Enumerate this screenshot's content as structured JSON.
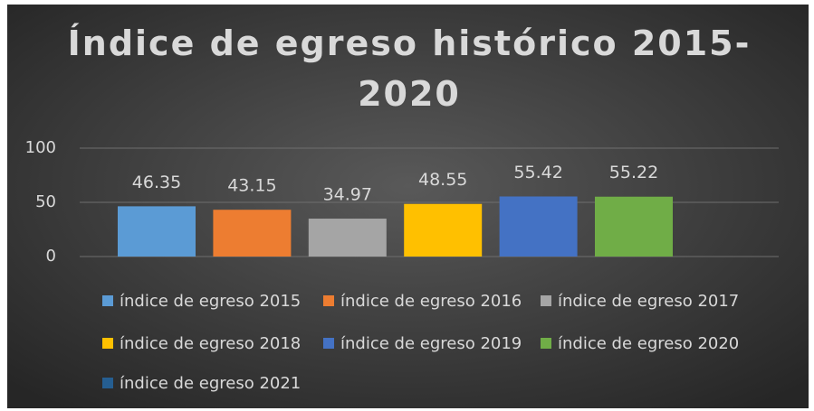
{
  "chart_data": {
    "type": "bar",
    "title": "Índice de egreso histórico 2015-2020",
    "series": [
      {
        "name": "índice de egreso 2015",
        "color": "#5b9bd5",
        "values": [
          46.35
        ]
      },
      {
        "name": "índice de egreso 2016",
        "color": "#ed7d31",
        "values": [
          43.15
        ]
      },
      {
        "name": "índice de egreso 2017",
        "color": "#a5a5a5",
        "values": [
          34.97
        ]
      },
      {
        "name": "índice de egreso 2018",
        "color": "#ffc000",
        "values": [
          48.55
        ]
      },
      {
        "name": "índice de egreso 2019",
        "color": "#4472c4",
        "values": [
          55.42
        ]
      },
      {
        "name": "índice de egreso 2020",
        "color": "#70ad47",
        "values": [
          55.22
        ]
      },
      {
        "name": "índice de egreso 2021",
        "color": "#255e91",
        "values": [
          null
        ]
      }
    ],
    "ylim": [
      0,
      100
    ],
    "yticks": [
      0,
      50,
      100
    ],
    "grid": true,
    "legend": "bottom"
  }
}
